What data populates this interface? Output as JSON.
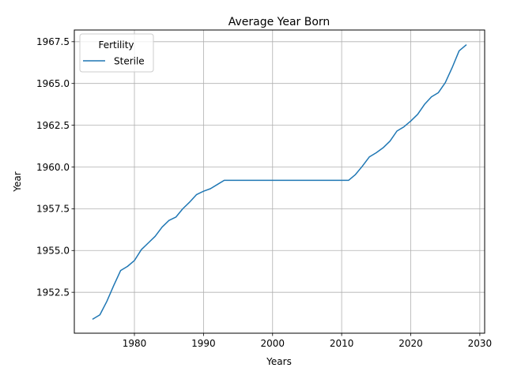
{
  "chart_data": {
    "type": "line",
    "title": "Average Year Born",
    "xlabel": "Years",
    "ylabel": "Year",
    "xlim": [
      1971.3,
      2030.7
    ],
    "ylim": [
      1950.05,
      1968.2
    ],
    "xticks": [
      1980,
      1990,
      2000,
      2010,
      2020,
      2030
    ],
    "xtick_labels": [
      "1980",
      "1990",
      "2000",
      "2010",
      "2020",
      "2030"
    ],
    "yticks": [
      1952.5,
      1955.0,
      1957.5,
      1960.0,
      1962.5,
      1965.0,
      1967.5
    ],
    "ytick_labels": [
      "1952.5",
      "1955.0",
      "1957.5",
      "1960.0",
      "1962.5",
      "1965.0",
      "1967.5"
    ],
    "grid": true,
    "legend": {
      "title": "Fertility",
      "position": "top-left"
    },
    "series": [
      {
        "name": "Sterile",
        "color": "#1f77b4",
        "x": [
          1974,
          1975,
          1976,
          1977,
          1978,
          1979,
          1980,
          1981,
          1982,
          1983,
          1984,
          1985,
          1986,
          1987,
          1988,
          1989,
          1990,
          1991,
          1992,
          1993,
          1994,
          1995,
          1996,
          1997,
          1998,
          1999,
          2000,
          2001,
          2002,
          2003,
          2004,
          2005,
          2006,
          2007,
          2008,
          2009,
          2010,
          2011,
          2012,
          2013,
          2014,
          2015,
          2016,
          2017,
          2018,
          2019,
          2020,
          2021,
          2022,
          2023,
          2024,
          2025,
          2026,
          2027,
          2028
        ],
        "y": [
          1950.9,
          1951.15,
          1951.95,
          1952.9,
          1953.8,
          1954.05,
          1954.4,
          1955.05,
          1955.45,
          1955.85,
          1956.4,
          1956.8,
          1957.0,
          1957.5,
          1957.9,
          1958.35,
          1958.55,
          1958.7,
          1958.95,
          1959.2,
          1959.2,
          1959.2,
          1959.2,
          1959.2,
          1959.2,
          1959.2,
          1959.2,
          1959.2,
          1959.2,
          1959.2,
          1959.2,
          1959.2,
          1959.2,
          1959.2,
          1959.2,
          1959.2,
          1959.2,
          1959.2,
          1959.55,
          1960.05,
          1960.6,
          1960.85,
          1961.15,
          1961.55,
          1962.15,
          1962.4,
          1962.75,
          1963.15,
          1963.75,
          1964.2,
          1964.45,
          1965.05,
          1965.95,
          1966.95,
          1967.3
        ]
      }
    ]
  }
}
